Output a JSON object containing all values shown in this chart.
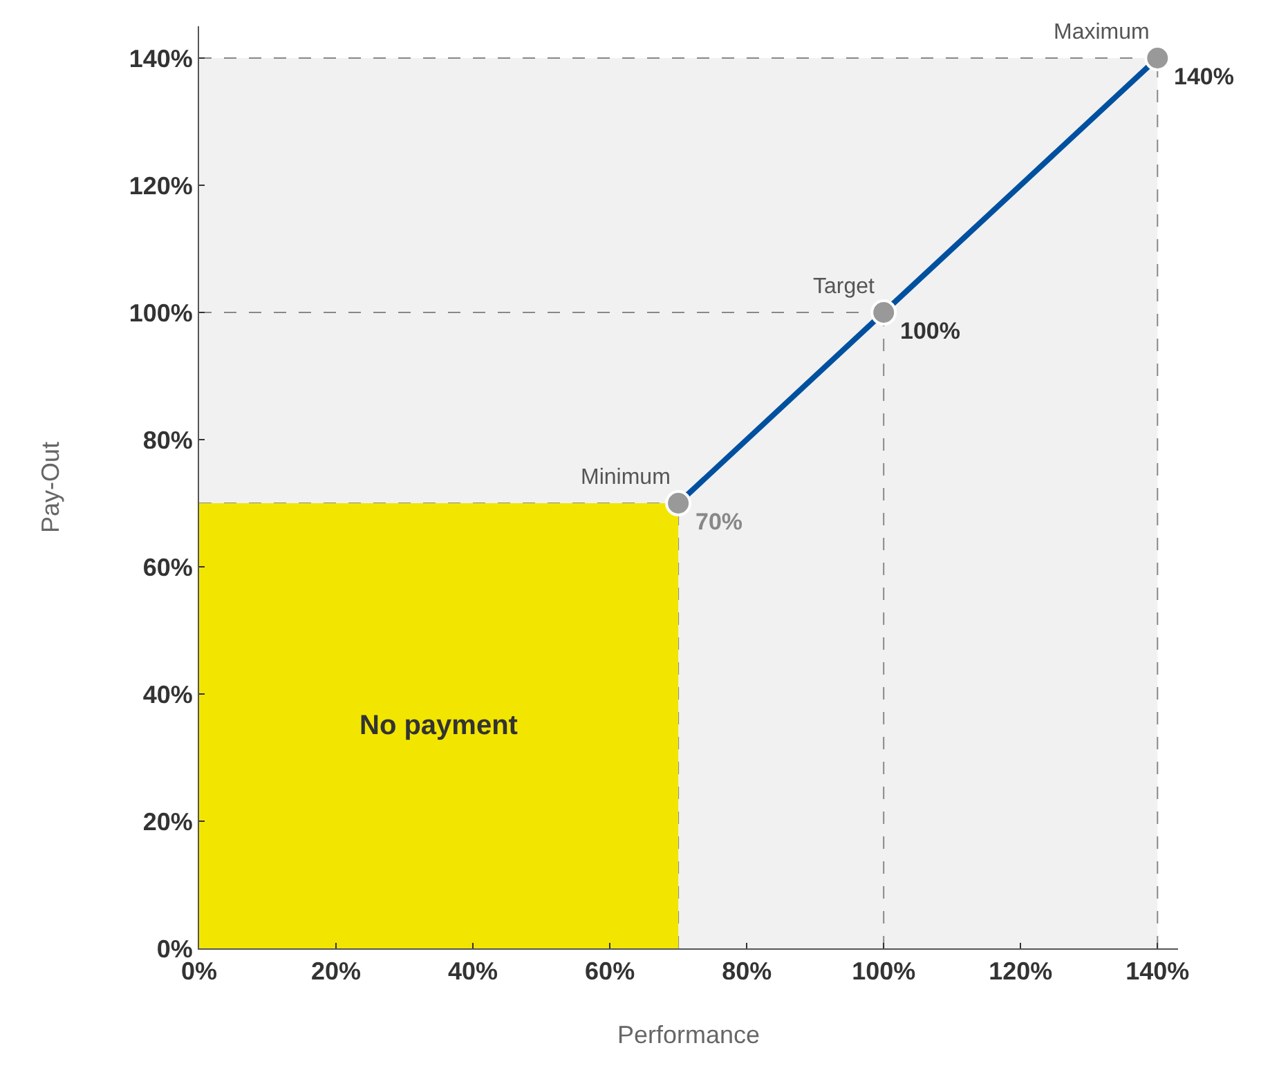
{
  "chart_data": {
    "type": "line",
    "xlabel": "Performance",
    "ylabel": "Pay-Out",
    "xlim": [
      0,
      143
    ],
    "ylim": [
      0,
      145
    ],
    "xticks": [
      {
        "value": 0,
        "label": "0%"
      },
      {
        "value": 20,
        "label": "20%"
      },
      {
        "value": 40,
        "label": "40%"
      },
      {
        "value": 60,
        "label": "60%"
      },
      {
        "value": 80,
        "label": "80%"
      },
      {
        "value": 100,
        "label": "100%"
      },
      {
        "value": 120,
        "label": "120%"
      },
      {
        "value": 140,
        "label": "140%"
      }
    ],
    "yticks": [
      {
        "value": 0,
        "label": "0%"
      },
      {
        "value": 20,
        "label": "20%"
      },
      {
        "value": 40,
        "label": "40%"
      },
      {
        "value": 60,
        "label": "60%"
      },
      {
        "value": 80,
        "label": "80%"
      },
      {
        "value": 100,
        "label": "100%"
      },
      {
        "value": 120,
        "label": "120%"
      },
      {
        "value": 140,
        "label": "140%"
      }
    ],
    "marker": "circle",
    "line_style": "solid",
    "series": [
      {
        "type": "area",
        "marker": "none",
        "color": "#f2e600",
        "x": [
          0,
          70
        ],
        "values": [
          70,
          70
        ]
      },
      {
        "color": "#0050a0",
        "colors": [
          "#999999",
          "#999999",
          "#999999"
        ],
        "x": [
          70,
          100,
          140
        ],
        "values": [
          70,
          100,
          140
        ],
        "value_labels": [
          "70%",
          "100%",
          "140%"
        ]
      }
    ],
    "annotations": [
      "No payment",
      {
        "text": "Minimum",
        "x": 70,
        "y": 70
      },
      {
        "text": "Target",
        "x": 100,
        "y": 100
      },
      {
        "text": "Maximum",
        "x": 140,
        "y": 140
      }
    ]
  }
}
